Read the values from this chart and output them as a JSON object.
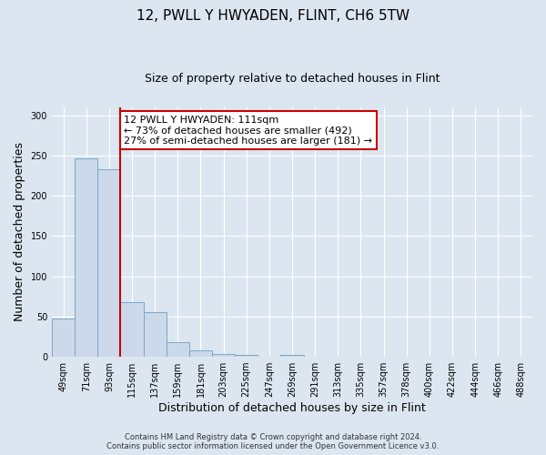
{
  "title": "12, PWLL Y HWYADEN, FLINT, CH6 5TW",
  "subtitle": "Size of property relative to detached houses in Flint",
  "xlabel": "Distribution of detached houses by size in Flint",
  "ylabel": "Number of detached properties",
  "bar_labels": [
    "49sqm",
    "71sqm",
    "93sqm",
    "115sqm",
    "137sqm",
    "159sqm",
    "181sqm",
    "203sqm",
    "225sqm",
    "247sqm",
    "269sqm",
    "291sqm",
    "313sqm",
    "335sqm",
    "357sqm",
    "378sqm",
    "400sqm",
    "422sqm",
    "444sqm",
    "466sqm",
    "488sqm"
  ],
  "bar_values": [
    48,
    246,
    233,
    68,
    56,
    18,
    8,
    4,
    2,
    0,
    2,
    0,
    0,
    0,
    0,
    0,
    0,
    0,
    0,
    0,
    0
  ],
  "bar_color": "#ccd9ea",
  "bar_edge_color": "#7aa6cc",
  "vline_x": 3,
  "vline_color": "#cc0000",
  "annotation_text": "12 PWLL Y HWYADEN: 111sqm\n← 73% of detached houses are smaller (492)\n27% of semi-detached houses are larger (181) →",
  "annotation_box_facecolor": "#ffffff",
  "annotation_box_edgecolor": "#cc0000",
  "background_color": "#dce6f0",
  "plot_background": "#dce6f0",
  "yticks": [
    0,
    50,
    100,
    150,
    200,
    250,
    300
  ],
  "ylim": [
    0,
    310
  ],
  "footer_line1": "Contains HM Land Registry data © Crown copyright and database right 2024.",
  "footer_line2": "Contains public sector information licensed under the Open Government Licence v3.0.",
  "title_fontsize": 11,
  "subtitle_fontsize": 9,
  "ylabel_fontsize": 9,
  "xlabel_fontsize": 9,
  "tick_fontsize": 7,
  "annotation_fontsize": 8,
  "footer_fontsize": 6
}
